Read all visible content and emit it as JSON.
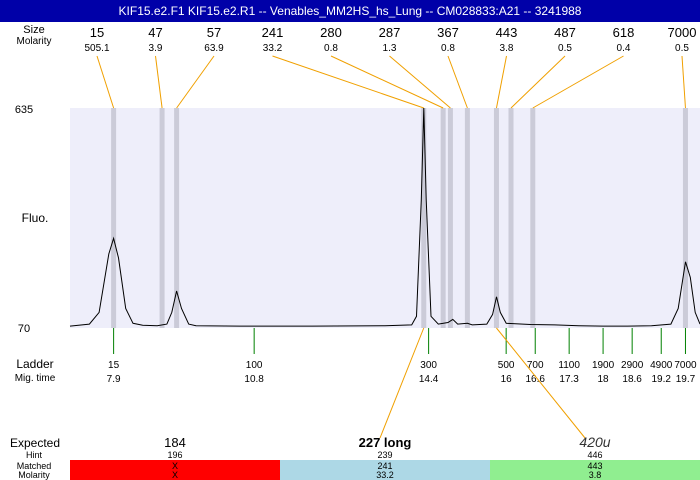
{
  "title": "KIF15.e2.F1  KIF15.e2.R1 -- Venables_MM2HS_hs_Lung -- CM028833:A21 -- 3241988",
  "chart_data": {
    "type": "line",
    "title": "KIF15.e2.F1  KIF15.e2.R1 -- Venables_MM2HS_hs_Lung -- CM028833:A21 -- 3241988",
    "row_labels": {
      "size": "Size",
      "molarity": "Molarity",
      "fluo": "Fluo.",
      "ladder": "Ladder",
      "mig_time": "Mig. time"
    },
    "y_ticks": [
      "635",
      "70"
    ],
    "ylim": [
      70,
      635
    ],
    "xlim": [
      7.0,
      20.0
    ],
    "peaks": [
      {
        "size": "15",
        "molarity": "505.1",
        "time": 7.9
      },
      {
        "size": "47",
        "molarity": "3.9",
        "time": 8.9
      },
      {
        "size": "57",
        "molarity": "63.9",
        "time": 9.2
      },
      {
        "size": "241",
        "molarity": "33.2",
        "time": 14.3
      },
      {
        "size": "280",
        "molarity": "0.8",
        "time": 14.7
      },
      {
        "size": "287",
        "molarity": "1.3",
        "time": 14.85
      },
      {
        "size": "367",
        "molarity": "0.8",
        "time": 15.2
      },
      {
        "size": "443",
        "molarity": "3.8",
        "time": 15.8
      },
      {
        "size": "487",
        "molarity": "0.5",
        "time": 16.1
      },
      {
        "size": "618",
        "molarity": "0.4",
        "time": 16.55
      },
      {
        "size": "7000",
        "molarity": "0.5",
        "time": 19.7
      }
    ],
    "ladder": [
      {
        "size": "15",
        "time": "7.9"
      },
      {
        "size": "100",
        "time": "10.8"
      },
      {
        "size": "300",
        "time": "14.4"
      },
      {
        "size": "500",
        "time": "16"
      },
      {
        "size": "700",
        "time": "16.6"
      },
      {
        "size": "1100",
        "time": "17.3"
      },
      {
        "size": "1900",
        "time": "18"
      },
      {
        "size": "2900",
        "time": "18.6"
      },
      {
        "size": "4900",
        "time": "19.2"
      },
      {
        "size": "7000",
        "time": "19.7"
      }
    ],
    "trace": [
      [
        7.0,
        75
      ],
      [
        7.4,
        80
      ],
      [
        7.6,
        110
      ],
      [
        7.8,
        260
      ],
      [
        7.9,
        300
      ],
      [
        8.0,
        250
      ],
      [
        8.15,
        120
      ],
      [
        8.3,
        82
      ],
      [
        8.5,
        77
      ],
      [
        8.8,
        76
      ],
      [
        9.0,
        80
      ],
      [
        9.1,
        110
      ],
      [
        9.2,
        165
      ],
      [
        9.3,
        120
      ],
      [
        9.45,
        80
      ],
      [
        9.6,
        76
      ],
      [
        10.5,
        75
      ],
      [
        12.0,
        75
      ],
      [
        13.5,
        76
      ],
      [
        14.05,
        78
      ],
      [
        14.15,
        100
      ],
      [
        14.25,
        400
      ],
      [
        14.3,
        635
      ],
      [
        14.35,
        400
      ],
      [
        14.45,
        100
      ],
      [
        14.6,
        80
      ],
      [
        14.8,
        84
      ],
      [
        14.9,
        92
      ],
      [
        15.0,
        80
      ],
      [
        15.2,
        82
      ],
      [
        15.3,
        78
      ],
      [
        15.6,
        80
      ],
      [
        15.72,
        105
      ],
      [
        15.8,
        150
      ],
      [
        15.88,
        110
      ],
      [
        16.0,
        82
      ],
      [
        16.5,
        79
      ],
      [
        17.0,
        78
      ],
      [
        17.5,
        76
      ],
      [
        18.0,
        75
      ],
      [
        18.5,
        75
      ],
      [
        19.0,
        76
      ],
      [
        19.4,
        80
      ],
      [
        19.55,
        120
      ],
      [
        19.7,
        240
      ],
      [
        19.8,
        200
      ],
      [
        19.9,
        110
      ],
      [
        20.0,
        80
      ]
    ],
    "expected": [
      {
        "label": "184",
        "hint": "196",
        "matched": "X",
        "molarity": "X",
        "color": "#ff0000",
        "style": "plain"
      },
      {
        "label": "227 long",
        "hint": "239",
        "matched": "241",
        "molarity": "33.2",
        "color": "#add8e6",
        "style": "bold"
      },
      {
        "label": "420u",
        "hint": "446",
        "matched": "443",
        "molarity": "3.8",
        "color": "#90ee90",
        "style": "italic"
      }
    ],
    "expected_labels": {
      "expected": "Expected",
      "hint": "Hint",
      "matched": "Matched",
      "molarity": "Molarity"
    },
    "colors": {
      "plot_bg": "#eeeefa",
      "band": "#cbcbd8",
      "connector": "#f0a000",
      "ladder_tick": "#008000",
      "trace": "#000000"
    }
  }
}
